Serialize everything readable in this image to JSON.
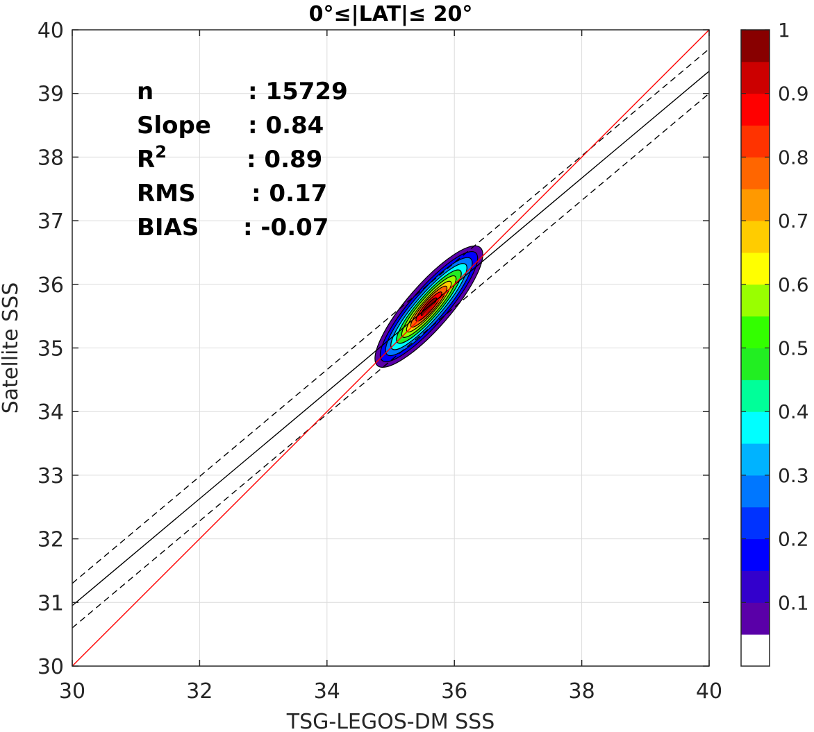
{
  "chart_data": {
    "type": "scatter",
    "title": "0°≤|LAT|≤ 20°",
    "xlabel": "TSG-LEGOS-DM SSS",
    "ylabel": "Satellite SSS",
    "xlim": [
      30,
      40
    ],
    "ylim": [
      30,
      40
    ],
    "xticks": [
      30,
      32,
      34,
      36,
      38,
      40
    ],
    "yticks": [
      30,
      31,
      32,
      33,
      34,
      35,
      36,
      37,
      38,
      39,
      40
    ],
    "grid": true,
    "stats": [
      {
        "label": "n",
        "value": ": 15729"
      },
      {
        "label": "Slope",
        "value": ": 0.84"
      },
      {
        "label": "R",
        "sup": "2",
        "value": ": 0.89"
      },
      {
        "label": "RMS",
        "value": ": 0.17"
      },
      {
        "label": "BIAS",
        "value": ": -0.07"
      }
    ],
    "lines": {
      "one_to_one": {
        "color": "#ff0000",
        "x": [
          30,
          40
        ],
        "y": [
          30,
          40
        ]
      },
      "regression": {
        "color": "#000000",
        "style": "solid",
        "x": [
          30,
          40
        ],
        "y": [
          30.95,
          39.35
        ]
      },
      "regression_upper": {
        "color": "#000000",
        "style": "dashed",
        "x": [
          30,
          40
        ],
        "y": [
          31.3,
          39.7
        ]
      },
      "regression_lower": {
        "color": "#000000",
        "style": "dashed",
        "x": [
          30,
          40
        ],
        "y": [
          30.6,
          39.0
        ]
      }
    },
    "density": {
      "center": [
        35.6,
        35.65
      ],
      "angle_deg": 49,
      "levels": [
        0.05,
        0.15,
        0.25,
        0.35,
        0.45,
        0.55,
        0.65,
        0.75,
        0.85,
        0.95
      ],
      "semi_axes": [
        [
          1.23,
          0.34
        ],
        [
          1.12,
          0.28
        ],
        [
          1.0,
          0.24
        ],
        [
          0.88,
          0.2
        ],
        [
          0.75,
          0.17
        ],
        [
          0.63,
          0.14
        ],
        [
          0.52,
          0.11
        ],
        [
          0.42,
          0.09
        ],
        [
          0.3,
          0.065
        ],
        [
          0.18,
          0.04
        ]
      ]
    },
    "colorbar": {
      "range": [
        0,
        1
      ],
      "ticks": [
        "0.1",
        "0.2",
        "0.3",
        "0.4",
        "0.5",
        "0.6",
        "0.7",
        "0.8",
        "0.9",
        "1"
      ],
      "tick_values": [
        0.1,
        0.2,
        0.3,
        0.4,
        0.5,
        0.6,
        0.7,
        0.8,
        0.9,
        1.0
      ],
      "colors": [
        "#ffffff",
        "#5a00a8",
        "#3300cc",
        "#0000ff",
        "#0033ff",
        "#0077ff",
        "#00b3ff",
        "#00ffff",
        "#00ff99",
        "#22ee22",
        "#33ff00",
        "#99ff00",
        "#ffff00",
        "#ffcc00",
        "#ff9900",
        "#ff6600",
        "#ff3300",
        "#ff0000",
        "#cc0000",
        "#880000"
      ]
    }
  }
}
